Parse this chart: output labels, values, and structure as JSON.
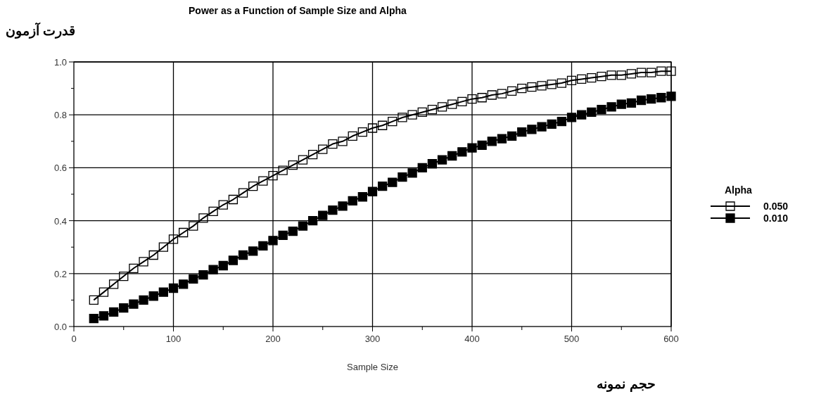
{
  "chart_data": {
    "type": "line",
    "title": "Power as a Function of Sample Size and Alpha",
    "xlabel": "Sample Size",
    "ylabel": "قدرت آزمون",
    "annotations": [
      "حجم نمونه"
    ],
    "legend_title": "Alpha",
    "x": [
      20,
      30,
      40,
      50,
      60,
      70,
      80,
      90,
      100,
      110,
      120,
      130,
      140,
      150,
      160,
      170,
      180,
      190,
      200,
      210,
      220,
      230,
      240,
      250,
      260,
      270,
      280,
      290,
      300,
      310,
      320,
      330,
      340,
      350,
      360,
      370,
      380,
      390,
      400,
      410,
      420,
      430,
      440,
      450,
      460,
      470,
      480,
      490,
      500,
      510,
      520,
      530,
      540,
      550,
      560,
      570,
      580,
      590,
      600
    ],
    "series": [
      {
        "name": "0.050",
        "color": "#000000",
        "marker": "square",
        "values": [
          0.1,
          0.13,
          0.16,
          0.19,
          0.22,
          0.245,
          0.27,
          0.3,
          0.33,
          0.355,
          0.38,
          0.41,
          0.435,
          0.46,
          0.48,
          0.505,
          0.53,
          0.55,
          0.57,
          0.59,
          0.61,
          0.63,
          0.65,
          0.67,
          0.69,
          0.7,
          0.72,
          0.735,
          0.75,
          0.76,
          0.775,
          0.79,
          0.8,
          0.81,
          0.82,
          0.83,
          0.84,
          0.85,
          0.86,
          0.865,
          0.875,
          0.88,
          0.89,
          0.9,
          0.905,
          0.91,
          0.915,
          0.92,
          0.93,
          0.935,
          0.94,
          0.945,
          0.95,
          0.95,
          0.955,
          0.96,
          0.96,
          0.965,
          0.965
        ]
      },
      {
        "name": "0.010",
        "color": "#000000",
        "marker": "square",
        "values": [
          0.03,
          0.04,
          0.055,
          0.07,
          0.085,
          0.1,
          0.115,
          0.13,
          0.145,
          0.16,
          0.18,
          0.195,
          0.215,
          0.23,
          0.25,
          0.27,
          0.285,
          0.305,
          0.325,
          0.345,
          0.36,
          0.38,
          0.4,
          0.42,
          0.44,
          0.455,
          0.475,
          0.49,
          0.51,
          0.53,
          0.545,
          0.565,
          0.58,
          0.6,
          0.615,
          0.63,
          0.645,
          0.66,
          0.675,
          0.685,
          0.7,
          0.71,
          0.72,
          0.735,
          0.745,
          0.755,
          0.765,
          0.775,
          0.79,
          0.8,
          0.81,
          0.82,
          0.83,
          0.84,
          0.845,
          0.855,
          0.86,
          0.865,
          0.87
        ]
      }
    ],
    "xlim": [
      0,
      600
    ],
    "xticks": [
      0,
      {
        "value": 50,
        "label": null
      },
      100,
      {
        "value": 150,
        "label": null
      },
      200,
      {
        "value": 250,
        "label": null
      },
      300,
      {
        "value": 350,
        "label": null
      },
      400,
      {
        "value": 450,
        "label": null
      },
      500,
      {
        "value": 550,
        "label": null
      },
      600
    ],
    "ylim": [
      0,
      1
    ],
    "yticks": [
      {
        "value": 0,
        "label": "0.0"
      },
      {
        "value": 0.1,
        "label": null
      },
      {
        "value": 0.2,
        "label": "0.2"
      },
      {
        "value": 0.3,
        "label": null
      },
      {
        "value": 0.4,
        "label": "0.4"
      },
      {
        "value": 0.5,
        "label": null
      },
      {
        "value": 0.6,
        "label": "0.6"
      },
      {
        "value": 0.7,
        "label": null
      },
      {
        "value": 0.8,
        "label": "0.8"
      },
      {
        "value": 0.9,
        "label": null
      },
      {
        "value": 1,
        "label": "1.0"
      }
    ],
    "grid": true,
    "legend": "right",
    "line_style": "solid"
  }
}
